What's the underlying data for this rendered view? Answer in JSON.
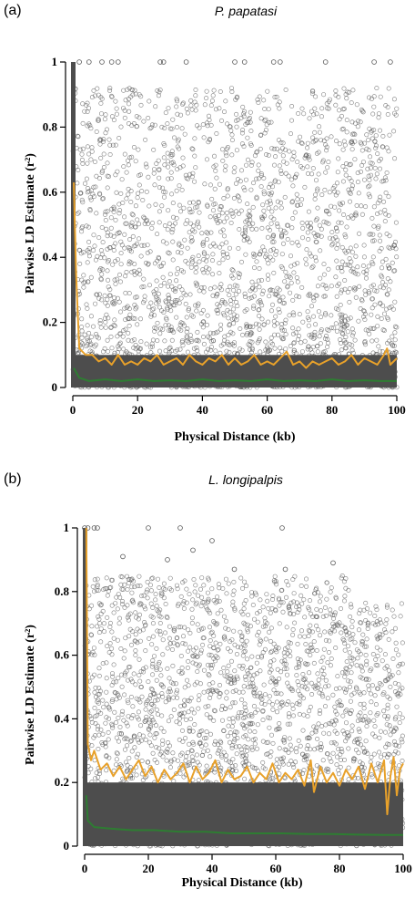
{
  "chart_data": [
    {
      "type": "scatter",
      "panel_label": "(a)",
      "title": "P. papatasi",
      "xlabel": "Physical Distance (kb)",
      "ylabel": "Pairwise LD Estimate (r²)",
      "xlim": [
        0,
        100
      ],
      "ylim": [
        0,
        1
      ],
      "xticks": [
        0,
        20,
        40,
        60,
        80,
        100
      ],
      "yticks": [
        0,
        0.2,
        0.4,
        0.6,
        0.8,
        1
      ],
      "grid": false,
      "legend": "none",
      "colors": {
        "points": "#555555",
        "dense": "#4d4d4d",
        "mean_line": "#e8a12a",
        "median_line": "#2e7d32"
      },
      "series": [
        {
          "kind": "points",
          "values": [
            [
              2,
              1.0
            ],
            [
              5,
              1.0
            ],
            [
              9,
              1.0
            ],
            [
              12,
              1.0
            ],
            [
              14,
              1.0
            ],
            [
              27,
              1.0
            ],
            [
              28,
              1.0
            ],
            [
              35,
              1.0
            ],
            [
              50,
              1.0
            ],
            [
              53,
              1.0
            ],
            [
              62,
              1.0
            ],
            [
              64,
              1.0
            ],
            [
              78,
              1.0
            ],
            [
              93,
              1.0
            ],
            [
              98,
              1.0
            ]
          ]
        },
        {
          "kind": "line",
          "values": [
            [
              0.3,
              0.63
            ],
            [
              1,
              0.35
            ],
            [
              2,
              0.12
            ],
            [
              4,
              0.1
            ],
            [
              6,
              0.1
            ],
            [
              8,
              0.08
            ],
            [
              10,
              0.09
            ],
            [
              12,
              0.07
            ],
            [
              14,
              0.1
            ],
            [
              16,
              0.07
            ],
            [
              18,
              0.08
            ],
            [
              20,
              0.07
            ],
            [
              22,
              0.09
            ],
            [
              24,
              0.08
            ],
            [
              26,
              0.1
            ],
            [
              28,
              0.07
            ],
            [
              30,
              0.08
            ],
            [
              32,
              0.09
            ],
            [
              34,
              0.07
            ],
            [
              36,
              0.1
            ],
            [
              38,
              0.08
            ],
            [
              40,
              0.07
            ],
            [
              42,
              0.09
            ],
            [
              44,
              0.08
            ],
            [
              46,
              0.1
            ],
            [
              48,
              0.07
            ],
            [
              50,
              0.09
            ],
            [
              52,
              0.07
            ],
            [
              54,
              0.08
            ],
            [
              56,
              0.1
            ],
            [
              58,
              0.07
            ],
            [
              60,
              0.08
            ],
            [
              62,
              0.07
            ],
            [
              64,
              0.09
            ],
            [
              66,
              0.11
            ],
            [
              68,
              0.07
            ],
            [
              70,
              0.08
            ],
            [
              72,
              0.06
            ],
            [
              74,
              0.08
            ],
            [
              76,
              0.07
            ],
            [
              78,
              0.08
            ],
            [
              80,
              0.09
            ],
            [
              82,
              0.07
            ],
            [
              84,
              0.08
            ],
            [
              86,
              0.1
            ],
            [
              88,
              0.07
            ],
            [
              90,
              0.09
            ],
            [
              92,
              0.08
            ],
            [
              94,
              0.07
            ],
            [
              96,
              0.1
            ],
            [
              97,
              0.12
            ],
            [
              98,
              0.07
            ],
            [
              100,
              0.09
            ]
          ]
        },
        {
          "kind": "line",
          "values": [
            [
              0.3,
              0.06
            ],
            [
              2,
              0.03
            ],
            [
              5,
              0.02
            ],
            [
              10,
              0.025
            ],
            [
              15,
              0.02
            ],
            [
              20,
              0.025
            ],
            [
              25,
              0.02
            ],
            [
              30,
              0.022
            ],
            [
              35,
              0.02
            ],
            [
              40,
              0.025
            ],
            [
              45,
              0.02
            ],
            [
              50,
              0.022
            ],
            [
              55,
              0.02
            ],
            [
              60,
              0.025
            ],
            [
              65,
              0.02
            ],
            [
              70,
              0.022
            ],
            [
              75,
              0.02
            ],
            [
              80,
              0.025
            ],
            [
              85,
              0.02
            ],
            [
              90,
              0.022
            ],
            [
              95,
              0.02
            ],
            [
              100,
              0.02
            ]
          ]
        }
      ]
    },
    {
      "type": "scatter",
      "panel_label": "(b)",
      "title": "L. longipalpis",
      "xlabel": "Physical Distance (kb)",
      "ylabel": "Pairwise LD Estimate (r²)",
      "xlim": [
        0,
        100
      ],
      "ylim": [
        0,
        1
      ],
      "xticks": [
        0,
        20,
        40,
        60,
        80,
        100
      ],
      "yticks": [
        0,
        0.2,
        0.4,
        0.6,
        0.8,
        1
      ],
      "grid": false,
      "legend": "none",
      "colors": {
        "points": "#555555",
        "dense": "#4d4d4d",
        "mean_line": "#e8a12a",
        "median_line": "#2e7d32"
      },
      "series": [
        {
          "kind": "points",
          "values": [
            [
              0,
              1.0
            ],
            [
              1,
              1.0
            ],
            [
              3,
              1.0
            ],
            [
              4,
              1.0
            ],
            [
              20,
              1.0
            ],
            [
              30,
              1.0
            ],
            [
              62,
              1.0
            ],
            [
              12,
              0.91
            ],
            [
              26,
              0.9
            ],
            [
              34,
              0.93
            ],
            [
              40,
              0.96
            ],
            [
              47,
              0.87
            ],
            [
              63,
              0.87
            ],
            [
              78,
              0.89
            ]
          ]
        },
        {
          "kind": "line",
          "values": [
            [
              0.5,
              1.0
            ],
            [
              1,
              0.32
            ],
            [
              2,
              0.27
            ],
            [
              3,
              0.3
            ],
            [
              5,
              0.24
            ],
            [
              7,
              0.26
            ],
            [
              9,
              0.22
            ],
            [
              11,
              0.25
            ],
            [
              13,
              0.21
            ],
            [
              15,
              0.24
            ],
            [
              17,
              0.27
            ],
            [
              19,
              0.22
            ],
            [
              21,
              0.25
            ],
            [
              23,
              0.2
            ],
            [
              25,
              0.24
            ],
            [
              27,
              0.21
            ],
            [
              29,
              0.23
            ],
            [
              31,
              0.26
            ],
            [
              33,
              0.2
            ],
            [
              35,
              0.25
            ],
            [
              37,
              0.21
            ],
            [
              39,
              0.23
            ],
            [
              41,
              0.27
            ],
            [
              43,
              0.2
            ],
            [
              45,
              0.24
            ],
            [
              47,
              0.21
            ],
            [
              49,
              0.22
            ],
            [
              51,
              0.25
            ],
            [
              53,
              0.2
            ],
            [
              55,
              0.23
            ],
            [
              57,
              0.21
            ],
            [
              59,
              0.26
            ],
            [
              61,
              0.2
            ],
            [
              63,
              0.23
            ],
            [
              65,
              0.21
            ],
            [
              67,
              0.24
            ],
            [
              69,
              0.19
            ],
            [
              71,
              0.27
            ],
            [
              72,
              0.17
            ],
            [
              74,
              0.25
            ],
            [
              76,
              0.2
            ],
            [
              78,
              0.23
            ],
            [
              80,
              0.19
            ],
            [
              82,
              0.24
            ],
            [
              84,
              0.21
            ],
            [
              86,
              0.25
            ],
            [
              88,
              0.18
            ],
            [
              90,
              0.26
            ],
            [
              92,
              0.2
            ],
            [
              94,
              0.27
            ],
            [
              95,
              0.1
            ],
            [
              96,
              0.22
            ],
            [
              97,
              0.28
            ],
            [
              98,
              0.16
            ],
            [
              99,
              0.24
            ],
            [
              100,
              0.26
            ]
          ]
        },
        {
          "kind": "line",
          "values": [
            [
              0.5,
              0.16
            ],
            [
              1,
              0.08
            ],
            [
              3,
              0.06
            ],
            [
              8,
              0.055
            ],
            [
              15,
              0.05
            ],
            [
              22,
              0.05
            ],
            [
              30,
              0.045
            ],
            [
              38,
              0.045
            ],
            [
              46,
              0.04
            ],
            [
              54,
              0.04
            ],
            [
              62,
              0.04
            ],
            [
              70,
              0.038
            ],
            [
              78,
              0.038
            ],
            [
              86,
              0.036
            ],
            [
              94,
              0.035
            ],
            [
              100,
              0.035
            ]
          ]
        }
      ]
    }
  ]
}
